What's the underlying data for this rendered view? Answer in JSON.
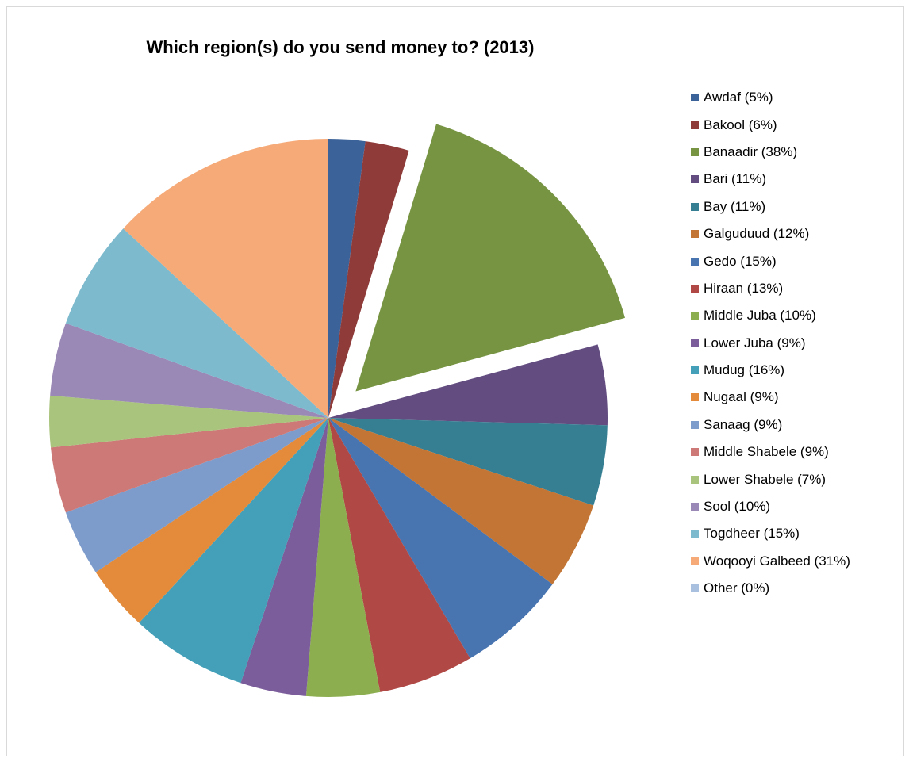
{
  "chart_data": {
    "type": "pie",
    "title": "Which region(s) do you send money to? (2013)",
    "categories": [
      "Awdaf",
      "Bakool",
      "Banaadir",
      "Bari",
      "Bay",
      "Galguduud",
      "Gedo",
      "Hiraan",
      "Middle Juba",
      "Lower Juba",
      "Mudug",
      "Nugaal",
      "Sanaag",
      "Middle Shabele",
      "Lower Shabele",
      "Sool",
      "Togdheer",
      "Woqooyi Galbeed",
      "Other"
    ],
    "values": [
      5,
      6,
      38,
      11,
      11,
      12,
      15,
      13,
      10,
      9,
      16,
      9,
      9,
      9,
      7,
      10,
      15,
      31,
      0
    ],
    "legend_labels": [
      "Awdaf (5%)",
      "Bakool (6%)",
      "Banaadir (38%)",
      "Bari (11%)",
      "Bay (11%)",
      "Galguduud (12%)",
      "Gedo (15%)",
      "Hiraan (13%)",
      "Middle Juba (10%)",
      "Lower Juba (9%)",
      "Mudug (16%)",
      "Nugaal (9%)",
      "Sanaag (9%)",
      "Middle Shabele (9%)",
      "Lower Shabele (7%)",
      "Sool (10%)",
      "Togdheer (15%)",
      "Woqooyi Galbeed (31%)",
      "Other (0%)"
    ],
    "colors": [
      "#3C6399",
      "#8E3B3A",
      "#779443",
      "#624C80",
      "#367F93",
      "#C27534",
      "#4874B0",
      "#B04845",
      "#8CAE4F",
      "#7A5D9A",
      "#43A0B8",
      "#E38B3B",
      "#7D9BCB",
      "#CC7977",
      "#A9C47D",
      "#9A88B6",
      "#7DBACE",
      "#F6AA78",
      "#A9C1DF"
    ],
    "exploded": [
      "Banaadir"
    ],
    "legend_position": "right"
  }
}
